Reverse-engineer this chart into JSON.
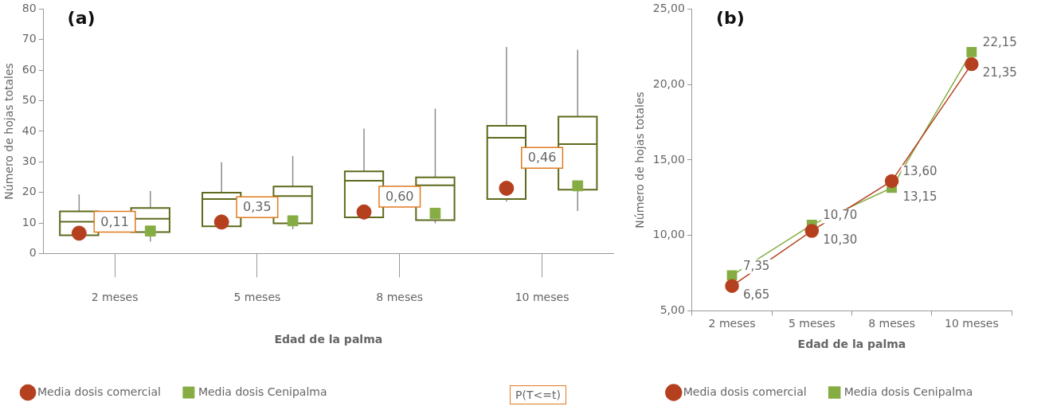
{
  "chart_data": [
    {
      "type": "box",
      "title": "(a)",
      "xlabel": "Edad de la palma",
      "ylabel": "Número de hojas totales",
      "categories": [
        "2 meses",
        "5 meses",
        "8 meses",
        "10 meses"
      ],
      "ylim": [
        0,
        80
      ],
      "yticks": [
        0,
        10,
        20,
        30,
        40,
        50,
        60,
        70,
        80
      ],
      "legend": "bottom",
      "series": [
        {
          "type": "box",
          "color": "#5e6a1c",
          "boxes": [
            {
              "low": 4.5,
              "q1": 6,
              "median": 10.4,
              "q3": 13.8,
              "high": 19.3
            },
            {
              "low": 8.5,
              "q1": 8.9,
              "median": 17.8,
              "q3": 19.9,
              "high": 29.9
            },
            {
              "low": 11,
              "q1": 11.8,
              "median": 23.8,
              "q3": 26.9,
              "high": 40.9
            },
            {
              "low": 17,
              "q1": 17.8,
              "median": 37.9,
              "q3": 41.8,
              "high": 67.6
            }
          ]
        },
        {
          "type": "box",
          "color": "#5e6a1c",
          "boxes": [
            {
              "low": 3.9,
              "q1": 7,
              "median": 11.4,
              "q3": 14.9,
              "high": 20.4
            },
            {
              "low": 7.9,
              "q1": 9.9,
              "median": 18.8,
              "q3": 21.9,
              "high": 31.9
            },
            {
              "low": 9.9,
              "q1": 10.9,
              "median": 22.3,
              "q3": 24.9,
              "high": 47.4
            },
            {
              "low": 13.9,
              "q1": 20.9,
              "median": 35.8,
              "q3": 44.8,
              "high": 66.7
            }
          ]
        },
        {
          "type": "scatter",
          "name": "Media dosis comercial",
          "color": "#b5401f",
          "marker": "circle",
          "x": [
            "2 meses",
            "5 meses",
            "8 meses",
            "10 meses"
          ],
          "values": [
            6.65,
            10.3,
            13.6,
            21.35
          ]
        },
        {
          "type": "scatter",
          "name": "Media dosis Cenipalma",
          "color": "#86ad43",
          "marker": "square",
          "x": [
            "2 meses",
            "5 meses",
            "8 meses",
            "10 meses"
          ],
          "values": [
            7.35,
            10.7,
            13.15,
            22.15
          ]
        }
      ],
      "annotations": [
        "0,11",
        "0,35",
        "0,60",
        "0,46",
        "P(T<=t)"
      ]
    },
    {
      "type": "line",
      "title": "(b)",
      "xlabel": "Edad de la palma",
      "ylabel": "Número de hojas totales",
      "categories": [
        "2 meses",
        "5 meses",
        "8 meses",
        "10 meses"
      ],
      "ylim": [
        5,
        25
      ],
      "yticks": [
        {
          "value": 5,
          "label": "5,00"
        },
        {
          "value": 10,
          "label": "10,00"
        },
        {
          "value": 15,
          "label": "15,00"
        },
        {
          "value": 20,
          "label": "20,00"
        },
        {
          "value": 25,
          "label": "25,00"
        }
      ],
      "legend": "bottom",
      "series": [
        {
          "name": "Media dosis comercial",
          "color": "#b5401f",
          "marker": "circle",
          "values": [
            6.65,
            10.3,
            13.6,
            21.35
          ],
          "value_labels": [
            "6,65",
            "10,30",
            "13,60",
            "21,35"
          ]
        },
        {
          "name": "Media dosis Cenipalma",
          "color": "#86ad43",
          "marker": "square",
          "values": [
            7.35,
            10.7,
            13.15,
            22.15
          ],
          "value_labels": [
            "7,35",
            "10,70",
            "13,15",
            "22,15"
          ]
        }
      ]
    }
  ]
}
